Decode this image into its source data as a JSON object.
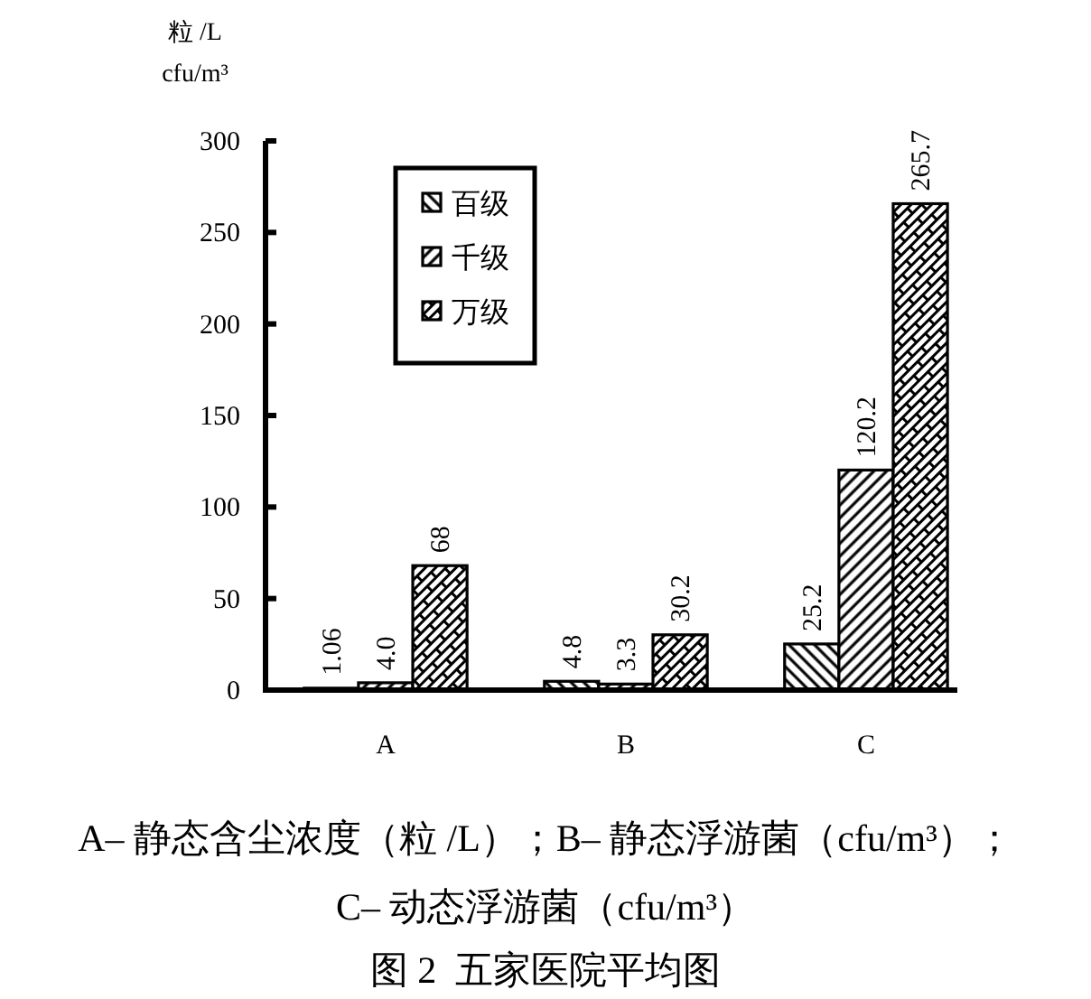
{
  "chart_data": {
    "type": "bar",
    "title": "图 2  五家医院平均图",
    "ylabel": "粒 /L\ncfu/m³",
    "annotations": [
      "A– 静态含尘浓度（粒 /L）；B– 静态浮游菌（cfu/m³）；\nC– 动态浮游菌（cfu/m³）"
    ],
    "categories": [
      "A",
      "B",
      "C"
    ],
    "series": [
      {
        "name": "百级",
        "color": "#000000",
        "values": [
          1.06,
          4.8,
          25.2
        ],
        "value_labels": [
          "1.06",
          "4.8",
          "25.2"
        ]
      },
      {
        "name": "千级",
        "color": "#000000",
        "values": [
          4.0,
          3.3,
          120.2
        ],
        "value_labels": [
          "4.0",
          "3.3",
          "120.2"
        ]
      },
      {
        "name": "万级",
        "color": "#000000",
        "values": [
          68,
          30.2,
          265.7
        ],
        "value_labels": [
          "68",
          "30.2",
          "265.7"
        ]
      }
    ],
    "ylim": [
      0,
      300
    ],
    "yticks": [
      0,
      50,
      100,
      150,
      200,
      250,
      300
    ],
    "legend": "top left"
  }
}
